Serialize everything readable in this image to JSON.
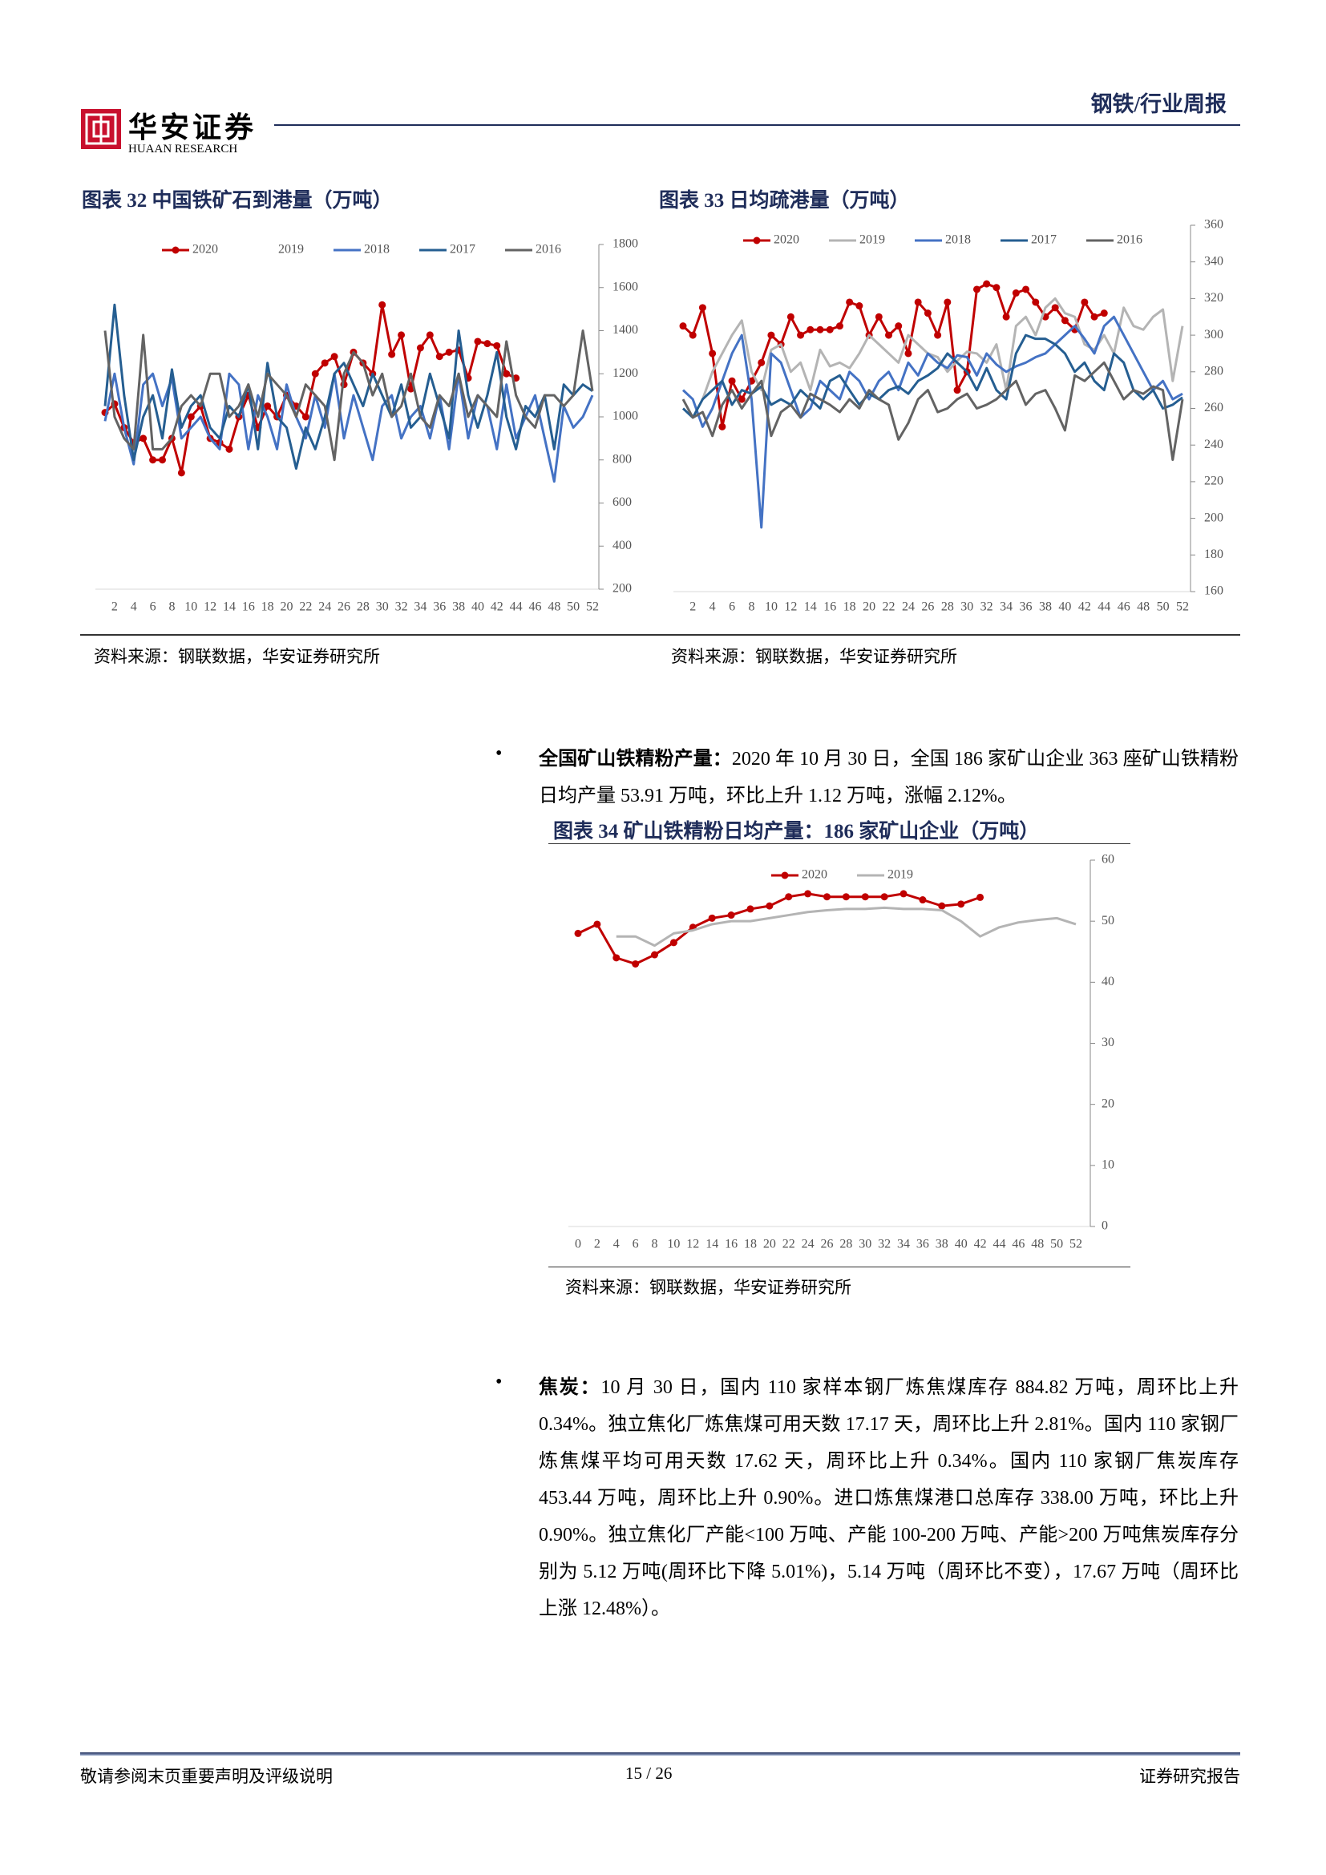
{
  "header": {
    "brand": "华安证券",
    "brand_en": "HUAAN RESEARCH",
    "report_type": "钢铁/行业周报"
  },
  "chart_data": [
    {
      "type": "line",
      "title": "图表 32 中国铁矿石到港量（万吨）",
      "source": "资料来源：钢联数据，华安证券研究所",
      "x": [
        1,
        2,
        3,
        4,
        5,
        6,
        7,
        8,
        9,
        10,
        11,
        12,
        13,
        14,
        15,
        16,
        17,
        18,
        19,
        20,
        21,
        22,
        23,
        24,
        25,
        26,
        27,
        28,
        29,
        30,
        31,
        32,
        33,
        34,
        35,
        36,
        37,
        38,
        39,
        40,
        41,
        42,
        43,
        44,
        45,
        46,
        47,
        48,
        49,
        50,
        51,
        52
      ],
      "xlim": [
        1,
        52
      ],
      "xticks": [
        2,
        4,
        6,
        8,
        10,
        12,
        14,
        16,
        18,
        20,
        22,
        24,
        26,
        28,
        30,
        32,
        34,
        36,
        38,
        40,
        42,
        44,
        46,
        48,
        50,
        52
      ],
      "ylim": [
        200,
        1800
      ],
      "yticks": [
        200,
        400,
        600,
        800,
        1000,
        1200,
        1400,
        1600,
        1800
      ],
      "series": [
        {
          "name": "2020",
          "color": "#c00000",
          "marker": true,
          "values": [
            1020,
            1060,
            950,
            880,
            900,
            800,
            800,
            900,
            740,
            1000,
            1050,
            900,
            880,
            850,
            1000,
            1100,
            950,
            1050,
            1000,
            1100,
            1050,
            1000,
            1200,
            1250,
            1280,
            1150,
            1300,
            1250,
            1200,
            1520,
            1290,
            1380,
            1130,
            1320,
            1380,
            1280,
            1300,
            1310,
            1180,
            1350,
            1340,
            1330,
            1200,
            1180,
            null,
            null,
            null,
            null,
            null,
            null,
            null,
            null
          ]
        },
        {
          "name": "2019",
          "color": "#ffffff",
          "marker": false,
          "values": [
            null,
            null,
            null,
            null,
            null,
            null,
            null,
            null,
            null,
            null,
            null,
            null,
            null,
            null,
            null,
            null,
            null,
            null,
            null,
            null,
            null,
            null,
            null,
            null,
            null,
            null,
            null,
            null,
            null,
            null,
            null,
            null,
            null,
            null,
            null,
            null,
            null,
            null,
            null,
            null,
            null,
            null,
            null,
            null,
            null,
            null,
            null,
            null,
            null,
            null,
            null,
            null
          ]
        },
        {
          "name": "2018",
          "color": "#4472c4",
          "marker": false,
          "values": [
            980,
            1200,
            950,
            780,
            1150,
            1200,
            1050,
            1180,
            900,
            950,
            1000,
            900,
            850,
            1200,
            1150,
            850,
            1100,
            1000,
            850,
            1150,
            1000,
            900,
            1100,
            950,
            1200,
            900,
            1100,
            950,
            800,
            1050,
            1100,
            900,
            1000,
            1050,
            900,
            1100,
            850,
            1200,
            900,
            1100,
            1050,
            850,
            1150,
            900,
            1000,
            1100,
            900,
            700,
            1050,
            950,
            1000,
            1100
          ]
        },
        {
          "name": "2017",
          "color": "#255e91",
          "marker": false,
          "values": [
            1050,
            1520,
            1100,
            800,
            1000,
            1100,
            900,
            1220,
            950,
            1050,
            1100,
            950,
            900,
            1050,
            1000,
            1150,
            850,
            1250,
            1000,
            950,
            760,
            950,
            850,
            1000,
            1200,
            1250,
            1150,
            1050,
            1200,
            1100,
            1000,
            1150,
            950,
            1000,
            1200,
            1050,
            900,
            1400,
            1100,
            950,
            1100,
            1300,
            1000,
            850,
            1050,
            1000,
            1100,
            850,
            1150,
            1100,
            1150,
            1120
          ]
        },
        {
          "name": "2016",
          "color": "#636363",
          "marker": false,
          "values": [
            1400,
            1000,
            900,
            850,
            1380,
            850,
            850,
            900,
            1050,
            1100,
            1050,
            1200,
            1200,
            1000,
            1050,
            1150,
            1000,
            1200,
            1150,
            1100,
            1000,
            1150,
            1100,
            1050,
            800,
            1200,
            1300,
            1250,
            1100,
            1200,
            1000,
            1050,
            1200,
            1000,
            950,
            1100,
            1050,
            1200,
            1000,
            1100,
            1050,
            1000,
            1350,
            1100,
            1000,
            950,
            1100,
            1100,
            1050,
            1100,
            1400,
            1120
          ]
        }
      ]
    },
    {
      "type": "line",
      "title": "图表 33 日均疏港量（万吨）",
      "source": "资料来源：钢联数据，华安证券研究所",
      "x": [
        1,
        2,
        3,
        4,
        5,
        6,
        7,
        8,
        9,
        10,
        11,
        12,
        13,
        14,
        15,
        16,
        17,
        18,
        19,
        20,
        21,
        22,
        23,
        24,
        25,
        26,
        27,
        28,
        29,
        30,
        31,
        32,
        33,
        34,
        35,
        36,
        37,
        38,
        39,
        40,
        41,
        42,
        43,
        44,
        45,
        46,
        47,
        48,
        49,
        50,
        51,
        52
      ],
      "xlim": [
        1,
        52
      ],
      "xticks": [
        2,
        4,
        6,
        8,
        10,
        12,
        14,
        16,
        18,
        20,
        22,
        24,
        26,
        28,
        30,
        32,
        34,
        36,
        38,
        40,
        42,
        44,
        46,
        48,
        50,
        52
      ],
      "ylim": [
        160,
        360
      ],
      "yticks": [
        160,
        180,
        200,
        220,
        240,
        260,
        280,
        300,
        320,
        340,
        360
      ],
      "series": [
        {
          "name": "2020",
          "color": "#c00000",
          "marker": true,
          "values": [
            305,
            300,
            315,
            290,
            250,
            275,
            265,
            275,
            285,
            300,
            295,
            310,
            300,
            303,
            303,
            303,
            305,
            318,
            316,
            300,
            310,
            300,
            305,
            290,
            318,
            312,
            300,
            318,
            270,
            280,
            325,
            328,
            326,
            310,
            323,
            325,
            318,
            310,
            315,
            308,
            303,
            318,
            310,
            312,
            null,
            null,
            null,
            null,
            null,
            null,
            null,
            null
          ]
        },
        {
          "name": "2019",
          "color": "#b4b4b4",
          "marker": false,
          "values": [
            null,
            null,
            265,
            280,
            290,
            300,
            308,
            280,
            270,
            292,
            295,
            280,
            285,
            270,
            292,
            283,
            285,
            282,
            290,
            300,
            295,
            290,
            285,
            300,
            295,
            290,
            288,
            280,
            286,
            291,
            290,
            285,
            295,
            270,
            305,
            310,
            300,
            315,
            320,
            312,
            310,
            295,
            292,
            300,
            290,
            315,
            305,
            303,
            310,
            314,
            275,
            305
          ]
        },
        {
          "name": "2018",
          "color": "#4472c4",
          "marker": false,
          "values": [
            270,
            265,
            250,
            260,
            275,
            290,
            300,
            265,
            195,
            290,
            285,
            270,
            255,
            260,
            275,
            270,
            265,
            280,
            275,
            265,
            275,
            280,
            270,
            285,
            278,
            290,
            285,
            282,
            289,
            288,
            278,
            290,
            284,
            280,
            283,
            285,
            288,
            290,
            295,
            300,
            305,
            298,
            290,
            305,
            310,
            300,
            290,
            280,
            270,
            275,
            265,
            268
          ]
        },
        {
          "name": "2017",
          "color": "#255e91",
          "marker": false,
          "values": [
            260,
            255,
            265,
            270,
            275,
            262,
            270,
            268,
            272,
            262,
            265,
            262,
            270,
            265,
            260,
            275,
            278,
            270,
            262,
            268,
            265,
            270,
            272,
            268,
            275,
            278,
            282,
            290,
            285,
            280,
            270,
            282,
            270,
            265,
            290,
            300,
            298,
            298,
            295,
            290,
            280,
            285,
            275,
            270,
            290,
            285,
            270,
            265,
            270,
            260,
            262,
            266
          ]
        },
        {
          "name": "2016",
          "color": "#636363",
          "marker": false,
          "values": [
            265,
            255,
            258,
            245,
            262,
            270,
            260,
            268,
            275,
            245,
            258,
            262,
            255,
            268,
            265,
            262,
            258,
            265,
            260,
            270,
            265,
            262,
            243,
            252,
            265,
            270,
            258,
            260,
            265,
            268,
            260,
            262,
            265,
            270,
            275,
            262,
            268,
            270,
            260,
            248,
            278,
            275,
            280,
            285,
            275,
            265,
            270,
            268,
            272,
            270,
            232,
            265
          ]
        }
      ]
    },
    {
      "type": "line",
      "title": "图表 34 矿山铁精粉日均产量：186 家矿山企业（万吨）",
      "source": "资料来源：钢联数据，华安证券研究所",
      "x": [
        0,
        2,
        4,
        6,
        8,
        10,
        12,
        14,
        16,
        18,
        20,
        22,
        24,
        26,
        28,
        30,
        32,
        34,
        36,
        38,
        40,
        42,
        44,
        46,
        48,
        50,
        52
      ],
      "xlim": [
        0,
        52
      ],
      "xticks": [
        0,
        2,
        4,
        6,
        8,
        10,
        12,
        14,
        16,
        18,
        20,
        22,
        24,
        26,
        28,
        30,
        32,
        34,
        36,
        38,
        40,
        42,
        44,
        46,
        48,
        50,
        52
      ],
      "ylim": [
        0,
        60
      ],
      "yticks": [
        0,
        10,
        20,
        30,
        40,
        50,
        60
      ],
      "series": [
        {
          "name": "2020",
          "color": "#c00000",
          "marker": true,
          "values": [
            48,
            49.5,
            44,
            43,
            44.5,
            46.5,
            49,
            50.5,
            51,
            52,
            52.5,
            54,
            54.5,
            54,
            54,
            54,
            54,
            54.5,
            53.5,
            52.5,
            52.8,
            53.91,
            null,
            null,
            null,
            null,
            null
          ]
        },
        {
          "name": "2019",
          "color": "#b4b4b4",
          "marker": false,
          "values": [
            null,
            null,
            47.5,
            47.5,
            46,
            48,
            48.5,
            49.5,
            50,
            50,
            50.5,
            51,
            51.5,
            51.8,
            52,
            52,
            52.2,
            52,
            52,
            51.8,
            50,
            47.5,
            49,
            49.8,
            50.2,
            50.5,
            49.5
          ]
        }
      ]
    }
  ],
  "paragraphs": [
    {
      "label": "全国矿山铁精粉产量：",
      "text": "2020 年 10 月 30 日，全国 186 家矿山企业 363 座矿山铁精粉日均产量 53.91 万吨，环比上升 1.12 万吨，涨幅 2.12%。"
    },
    {
      "label": "焦炭：",
      "text": "10 月 30 日，国内 110 家样本钢厂炼焦煤库存 884.82 万吨，周环比上升 0.34%。独立焦化厂炼焦煤可用天数 17.17 天，周环比上升 2.81%。国内 110 家钢厂炼焦煤平均可用天数 17.62 天，周环比上升 0.34%。国内 110 家钢厂焦炭库存 453.44 万吨，周环比上升 0.90%。进口炼焦煤港口总库存 338.00 万吨，环比上升 0.90%。独立焦化厂产能<100 万吨、产能 100-200 万吨、产能>200 万吨焦炭库存分别为 5.12 万吨(周环比下降 5.01%)，5.14 万吨（周环比不变），17.67 万吨（周环比上涨 12.48%）。"
    }
  ],
  "footer": {
    "left": "敬请参阅末页重要声明及评级说明",
    "page": "15 / 26",
    "right": "证券研究报告"
  }
}
